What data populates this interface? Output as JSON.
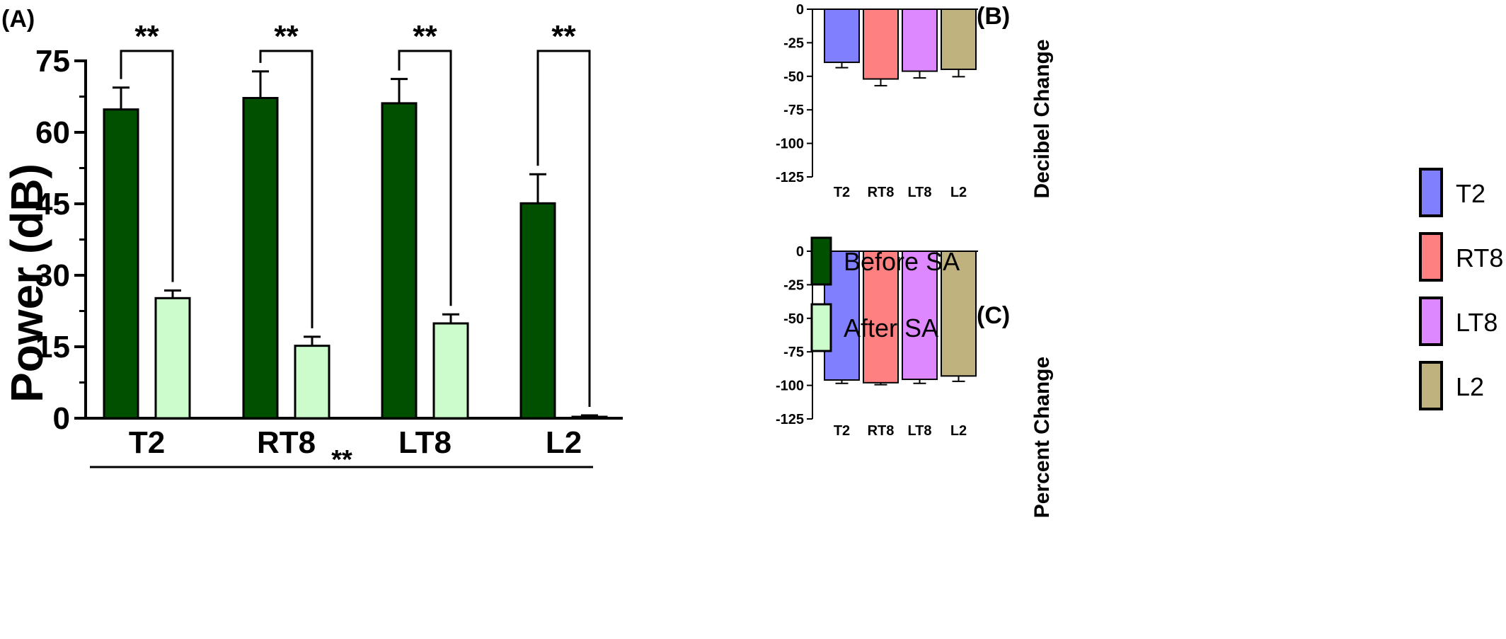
{
  "chart_data": [
    {
      "id": "A",
      "panel_label": "(A)",
      "type": "bar",
      "categories": [
        "T2",
        "RT8",
        "LT8",
        "L2"
      ],
      "ylabel": "Power (dB)",
      "xlabel": "",
      "ylim": [
        0,
        75
      ],
      "yticks": [
        0,
        15,
        30,
        45,
        60,
        75
      ],
      "series": [
        {
          "name": "Before SA",
          "color": "#005000",
          "values": [
            64.8,
            67.2,
            66.1,
            45.1
          ],
          "errors": [
            4.6,
            5.6,
            5.1,
            6.1
          ]
        },
        {
          "name": "After SA",
          "color": "#ccfccc",
          "values": [
            25.2,
            15.2,
            19.9,
            0.3
          ],
          "errors": [
            1.6,
            1.9,
            1.9,
            0.3
          ]
        }
      ],
      "significance": [
        "**",
        "**",
        "**",
        "**"
      ],
      "bottom_significance": "**",
      "legend_position": "right"
    },
    {
      "id": "B",
      "panel_label": "(B)",
      "type": "bar",
      "categories": [
        "T2",
        "RT8",
        "LT8",
        "L2"
      ],
      "ylabel": "Decibel  Change",
      "xlabel": "",
      "ylim": [
        -125,
        0
      ],
      "yticks": [
        0,
        -25,
        -50,
        -75,
        -100,
        -125
      ],
      "values": [
        -39.6,
        -52.0,
        -46.2,
        -44.8
      ],
      "errors": [
        4.0,
        5.0,
        5.0,
        5.5
      ],
      "colors": [
        "#8080ff",
        "#ff8080",
        "#dd88ff",
        "#bfb27e"
      ]
    },
    {
      "id": "C",
      "panel_label": "(C)",
      "type": "bar",
      "categories": [
        "T2",
        "RT8",
        "LT8",
        "L2"
      ],
      "ylabel": "Percent Change",
      "xlabel": "",
      "ylim": [
        -125,
        0
      ],
      "yticks": [
        0,
        -25,
        -50,
        -75,
        -100,
        -125
      ],
      "values": [
        -96.0,
        -98.0,
        -95.5,
        -93.0
      ],
      "errors": [
        2.5,
        1.5,
        3.0,
        4.0
      ],
      "colors": [
        "#8080ff",
        "#ff8080",
        "#dd88ff",
        "#bfb27e"
      ]
    }
  ],
  "legend": {
    "main": [
      {
        "label": "Before SA",
        "color": "#005000"
      },
      {
        "label": "After SA",
        "color": "#ccfccc"
      }
    ],
    "regions": [
      {
        "label": "T2",
        "color": "#8080ff"
      },
      {
        "label": "RT8",
        "color": "#ff8080"
      },
      {
        "label": "LT8",
        "color": "#dd88ff"
      },
      {
        "label": "L2",
        "color": "#bfb27e"
      }
    ]
  }
}
